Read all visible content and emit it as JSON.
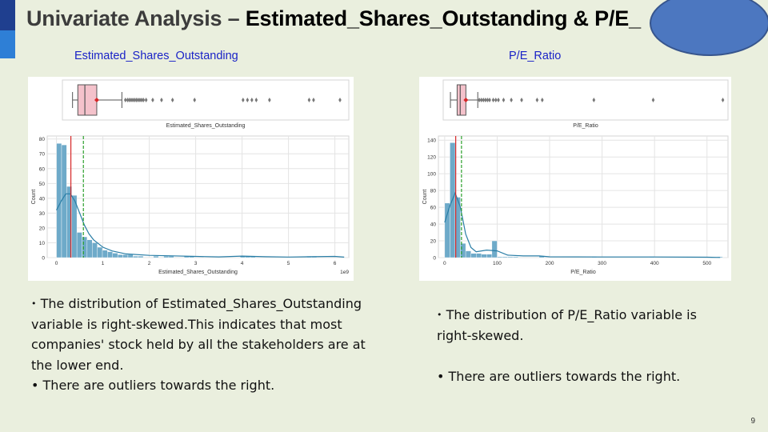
{
  "title": {
    "prefix": "Univariate Analysis –",
    "subject": " Estimated_Shares_Outstanding & P/E_"
  },
  "colors": {
    "background": "#eaefde",
    "accent_dark": "#1f3f8f",
    "accent_light": "#2e7fd6",
    "oval": "#4c77c0",
    "subtitle": "#1a23c7",
    "box_fill": "#f4c2cb",
    "hist_fill": "#6eaac9",
    "kde_line": "#2a7ea6",
    "median_line": "#d62728",
    "mean_line": "#2ca02c"
  },
  "left": {
    "subtitle": "Estimated_Shares_Outstanding",
    "bullets": [
      "The distribution of Estimated_Shares_Outstanding variable is right-skewed.This indicates that most companies' stock held by all the stakeholders are at the lower end.",
      "There are outliers towards the right."
    ]
  },
  "right": {
    "subtitle": "P/E_Ratio",
    "bullets": [
      "The distribution of P/E_Ratio variable is right-skewed.",
      "There are outliers towards the right."
    ]
  },
  "page_number": "9",
  "chart_data": [
    {
      "type": "histogram",
      "variable": "Estimated_Shares_Outstanding",
      "boxplot": {
        "xlabel": "Estimated_Shares_Outstanding",
        "q1": 150000000,
        "median": 310000000,
        "q3": 580000000,
        "whisker_low": 30000000,
        "whisker_high": 1150000000,
        "mean": 580000000,
        "outliers": [
          1230000000,
          1280000000,
          1320000000,
          1360000000,
          1400000000,
          1440000000,
          1480000000,
          1520000000,
          1560000000,
          1600000000,
          1640000000,
          1700000000,
          1850000000,
          2050000000,
          2300000000,
          2800000000,
          3900000000,
          4000000000,
          4100000000,
          4200000000,
          4500000000,
          5400000000,
          5500000000,
          6100000000
        ]
      },
      "histogram": {
        "xlabel": "Estimated_Shares_Outstanding",
        "ylabel": "Count",
        "x_multiplier": "1e9",
        "bin_width": 110000000,
        "bin_start": 0,
        "counts": [
          77,
          76,
          48,
          42,
          17,
          14,
          12,
          10,
          7,
          5,
          4,
          3,
          2,
          2,
          2,
          1,
          1,
          0,
          0,
          1,
          0,
          1,
          1,
          0,
          0,
          1,
          1,
          0,
          0,
          0,
          0,
          0,
          0,
          0,
          0,
          0,
          1,
          1,
          1,
          0,
          0,
          0,
          0,
          0,
          0,
          0,
          0,
          0,
          0,
          1,
          1,
          0,
          0,
          0,
          0,
          0
        ],
        "median": 310000000,
        "mean": 580000000,
        "xlim": [
          -200000000,
          6300000000
        ],
        "ylim": [
          0,
          82
        ],
        "xticks": [
          0,
          1,
          2,
          3,
          4,
          5,
          6
        ],
        "yticks": [
          0,
          10,
          20,
          30,
          40,
          50,
          60,
          70,
          80
        ],
        "kde": [
          [
            0.0,
            32
          ],
          [
            0.1,
            38
          ],
          [
            0.2,
            43
          ],
          [
            0.3,
            43
          ],
          [
            0.4,
            38
          ],
          [
            0.5,
            30
          ],
          [
            0.6,
            22
          ],
          [
            0.7,
            16
          ],
          [
            0.8,
            12
          ],
          [
            1.0,
            7
          ],
          [
            1.2,
            4.5
          ],
          [
            1.5,
            2.5
          ],
          [
            2.0,
            1.5
          ],
          [
            2.5,
            1.2
          ],
          [
            3.0,
            0.8
          ],
          [
            3.5,
            0.5
          ],
          [
            4.0,
            1.0
          ],
          [
            4.5,
            0.6
          ],
          [
            5.0,
            0.4
          ],
          [
            5.5,
            0.6
          ],
          [
            6.0,
            0.8
          ],
          [
            6.2,
            0.3
          ]
        ]
      }
    },
    {
      "type": "histogram",
      "variable": "P/E_Ratio",
      "boxplot": {
        "xlabel": "P/E_Ratio",
        "q1": 15,
        "median": 21,
        "q3": 32,
        "whisker_low": 2,
        "whisker_high": 55,
        "mean": 32,
        "outliers": [
          58,
          62,
          66,
          70,
          74,
          78,
          85,
          90,
          95,
          105,
          120,
          140,
          170,
          180,
          280,
          395,
          530
        ]
      },
      "histogram": {
        "xlabel": "P/E_Ratio",
        "ylabel": "Count",
        "bin_width": 10,
        "bin_start": 0,
        "counts": [
          65,
          137,
          72,
          17,
          8,
          5,
          5,
          4,
          4,
          20,
          1,
          1,
          1,
          1,
          0,
          0,
          0,
          0,
          2,
          0,
          0,
          0,
          0,
          0,
          0,
          0,
          0,
          0,
          1,
          0,
          0,
          0,
          0,
          0,
          0,
          0,
          0,
          0,
          0,
          1,
          0,
          0,
          0,
          0,
          0,
          0,
          0,
          0,
          0,
          0,
          0,
          0,
          1
        ],
        "median": 21,
        "mean": 32,
        "xlim": [
          -12,
          540
        ],
        "ylim": [
          0,
          145
        ],
        "xticks": [
          0,
          100,
          200,
          300,
          400,
          500
        ],
        "yticks": [
          0,
          20,
          40,
          60,
          80,
          100,
          120,
          140
        ],
        "kde": [
          [
            0,
            42
          ],
          [
            10,
            62
          ],
          [
            20,
            77
          ],
          [
            30,
            60
          ],
          [
            40,
            28
          ],
          [
            50,
            12
          ],
          [
            60,
            7
          ],
          [
            80,
            9
          ],
          [
            100,
            8
          ],
          [
            120,
            3
          ],
          [
            150,
            2
          ],
          [
            180,
            2
          ],
          [
            200,
            1
          ],
          [
            300,
            0.8
          ],
          [
            400,
            0.8
          ],
          [
            500,
            0.5
          ],
          [
            525,
            0.2
          ]
        ]
      }
    }
  ]
}
